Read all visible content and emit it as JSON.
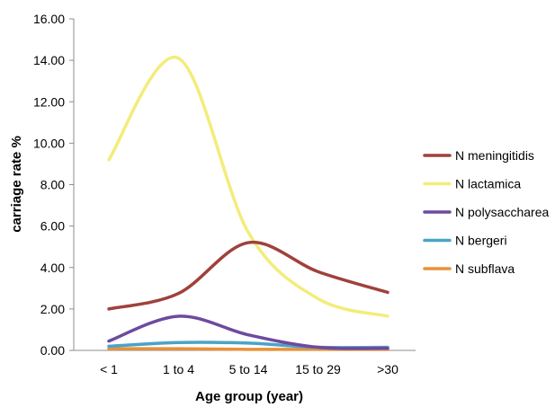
{
  "chart_data": {
    "type": "line",
    "title": "",
    "xlabel": "Age group (year)",
    "ylabel": "carriage rate %",
    "categories": [
      "< 1",
      "1 to 4",
      "5 to 14",
      "15 to 29",
      ">30"
    ],
    "ylim": [
      0,
      16
    ],
    "yticks": [
      "0.00",
      "2.00",
      "4.00",
      "6.00",
      "8.00",
      "10.00",
      "12.00",
      "14.00",
      "16.00"
    ],
    "grid": false,
    "legend_position": "right",
    "smooth": true,
    "series": [
      {
        "name": "N meningitidis",
        "color": "#A0413C",
        "values": [
          2.0,
          2.75,
          5.2,
          3.8,
          2.8
        ]
      },
      {
        "name": "N lactamica",
        "color": "#F3EC7A",
        "values": [
          9.2,
          14.1,
          5.7,
          2.5,
          1.65
        ]
      },
      {
        "name": "N polysaccharea",
        "color": "#6E4A9E",
        "values": [
          0.45,
          1.65,
          0.75,
          0.15,
          0.1
        ]
      },
      {
        "name": "N bergeri",
        "color": "#4BA3C7",
        "values": [
          0.2,
          0.38,
          0.35,
          0.15,
          0.15
        ]
      },
      {
        "name": "N subflava",
        "color": "#E8913A",
        "values": [
          0.08,
          0.08,
          0.05,
          0.05,
          0.05
        ]
      }
    ]
  }
}
